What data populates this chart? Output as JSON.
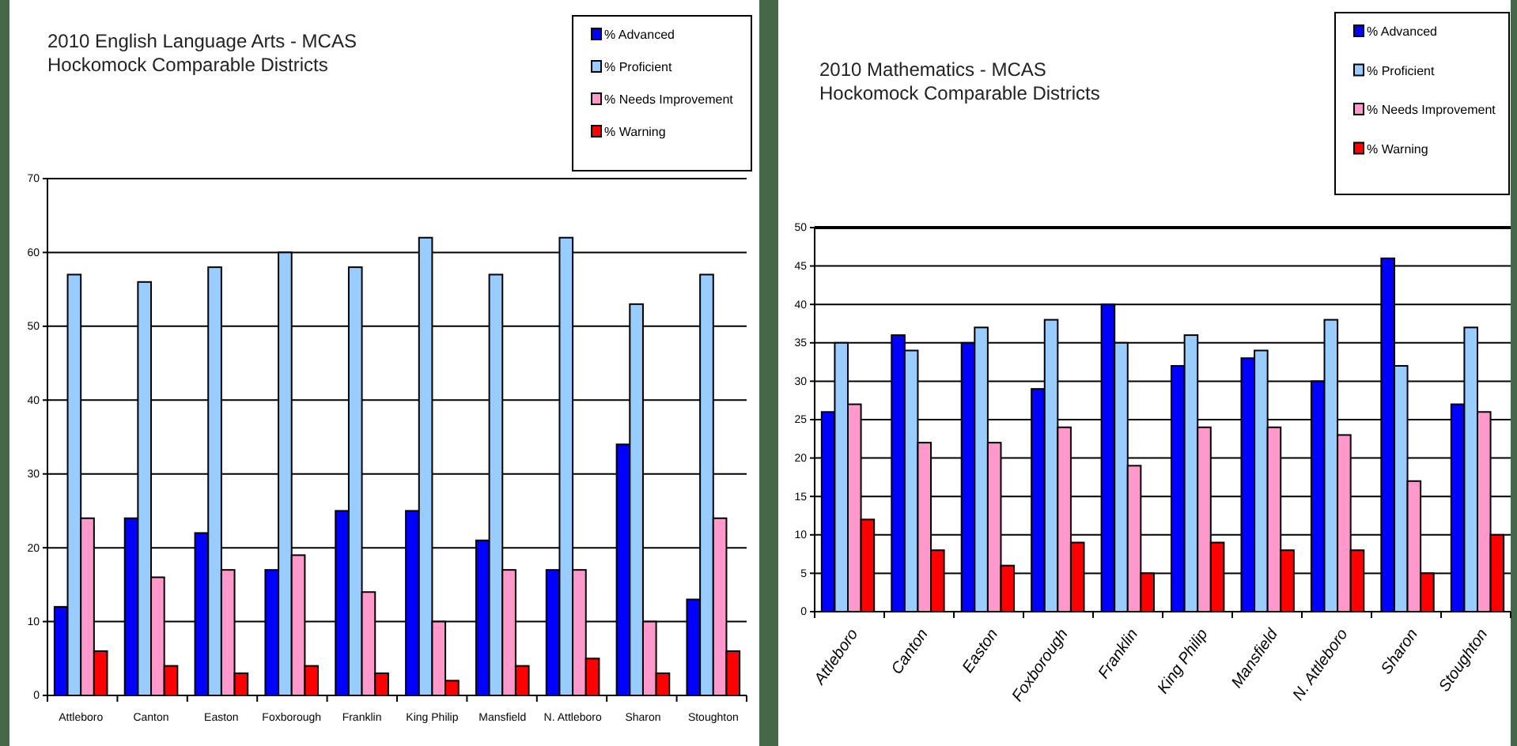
{
  "chart_data": [
    {
      "type": "bar",
      "title": "2010 English Language Arts - MCAS",
      "subtitle": "Hockomock Comparable Districts",
      "categories": [
        "Attleboro",
        "Canton",
        "Easton",
        "Foxborough",
        "Franklin",
        "King Philip",
        "Mansfield",
        "N. Attleboro",
        "Sharon",
        "Stoughton"
      ],
      "series": [
        {
          "name": "% Advanced",
          "color": "#0000ff",
          "values": [
            12,
            24,
            22,
            17,
            25,
            25,
            21,
            17,
            34,
            13
          ]
        },
        {
          "name": "% Proficient",
          "color": "#99ccff",
          "values": [
            57,
            56,
            58,
            60,
            58,
            62,
            57,
            62,
            53,
            57
          ]
        },
        {
          "name": "% Needs Improvement",
          "color": "#ff99cc",
          "values": [
            24,
            16,
            17,
            19,
            14,
            10,
            17,
            17,
            10,
            24
          ]
        },
        {
          "name": "% Warning",
          "color": "#ff0000",
          "values": [
            6,
            4,
            3,
            4,
            3,
            2,
            4,
            5,
            3,
            6
          ]
        }
      ],
      "ylim": [
        0,
        70
      ],
      "yticks": [
        0,
        10,
        20,
        30,
        40,
        50,
        60,
        70
      ],
      "grid": "y",
      "legend": "top right"
    },
    {
      "type": "bar",
      "title": "2010 Mathematics - MCAS",
      "subtitle": "Hockomock Comparable Districts",
      "categories": [
        "Attleboro",
        "Canton",
        "Easton",
        "Foxborough",
        "Franklin",
        "King Philip",
        "Mansfield",
        "N. Attleboro",
        "Sharon",
        "Stoughton"
      ],
      "series": [
        {
          "name": "% Advanced",
          "color": "#0000ff",
          "values": [
            26,
            36,
            35,
            29,
            40,
            32,
            33,
            30,
            46,
            27
          ]
        },
        {
          "name": "% Proficient",
          "color": "#99ccff",
          "values": [
            35,
            34,
            37,
            38,
            35,
            36,
            34,
            38,
            32,
            37
          ]
        },
        {
          "name": "% Needs Improvement",
          "color": "#ff99cc",
          "values": [
            27,
            22,
            22,
            24,
            19,
            24,
            24,
            23,
            17,
            26
          ]
        },
        {
          "name": "% Warning",
          "color": "#ff0000",
          "values": [
            12,
            8,
            6,
            9,
            5,
            9,
            8,
            8,
            5,
            10
          ]
        }
      ],
      "ylim": [
        0,
        50
      ],
      "yticks": [
        0,
        5,
        10,
        15,
        20,
        25,
        30,
        35,
        40,
        45,
        50
      ],
      "grid": "y",
      "legend": "top right"
    }
  ]
}
